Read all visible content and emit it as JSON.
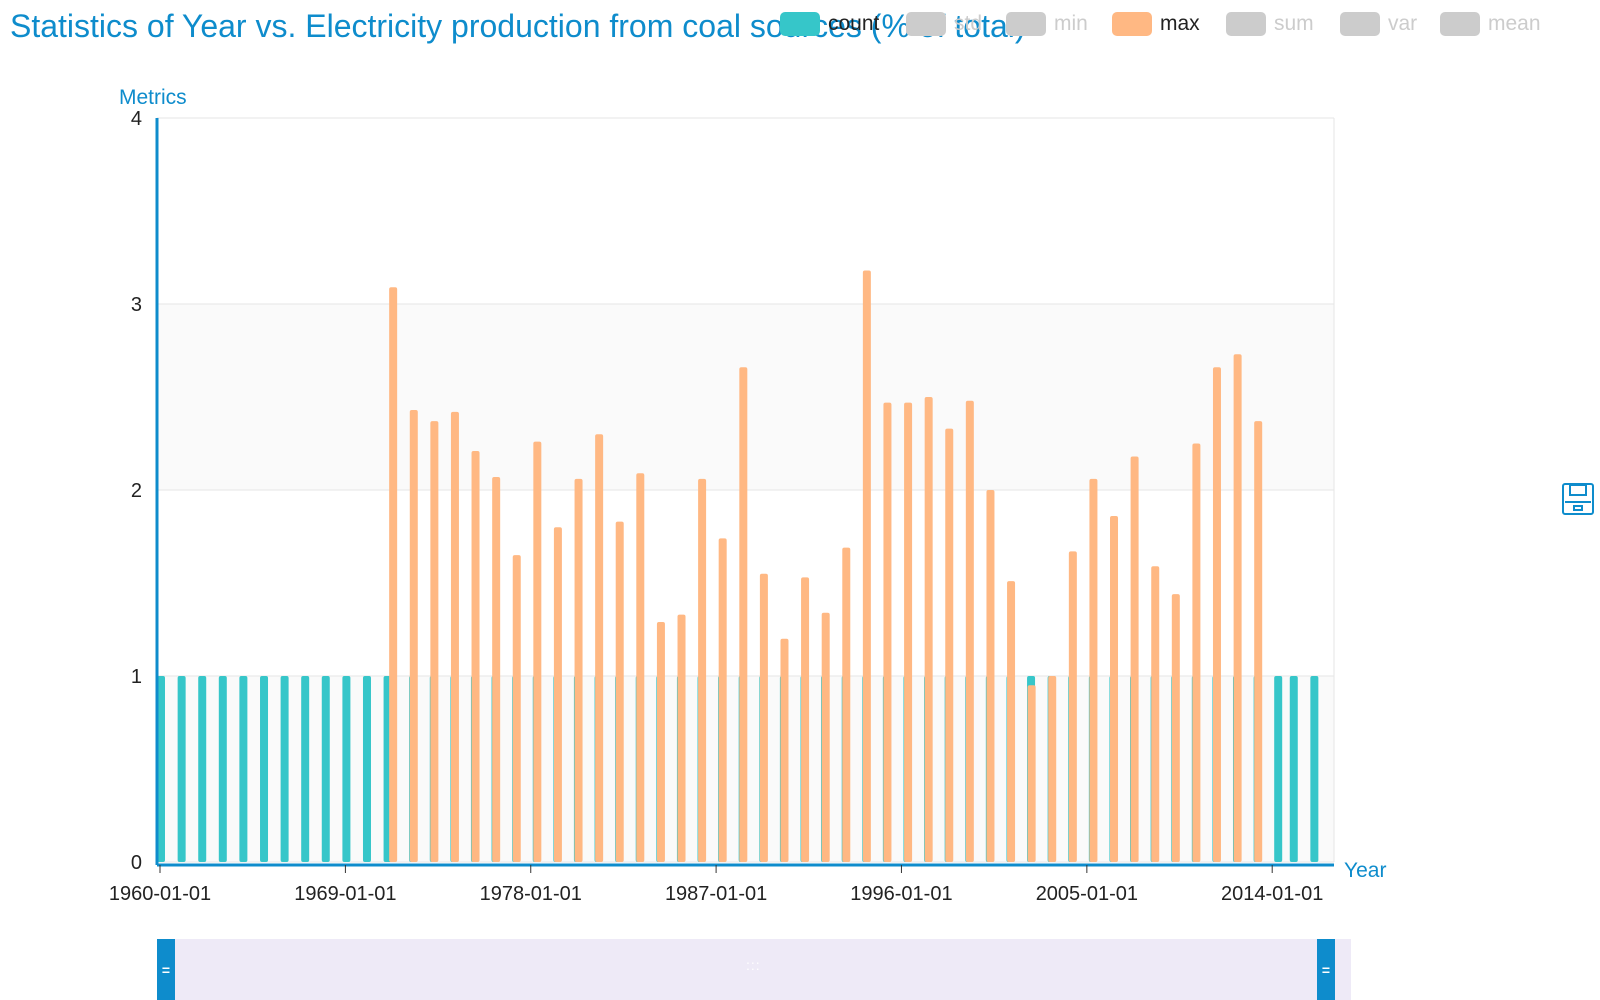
{
  "title": "Statistics of Year vs. Electricity production from coal sources (% of total)",
  "legend": [
    {
      "label": "count",
      "color": "#36c6c9",
      "active": true
    },
    {
      "label": "std",
      "color": "#cccccc",
      "active": false
    },
    {
      "label": "min",
      "color": "#cccccc",
      "active": false
    },
    {
      "label": "max",
      "color": "#ffb883",
      "active": true
    },
    {
      "label": "sum",
      "color": "#cccccc",
      "active": false
    },
    {
      "label": "var",
      "color": "#cccccc",
      "active": false
    },
    {
      "label": "mean",
      "color": "#cccccc",
      "active": false
    }
  ],
  "colors": {
    "accent": "#0e8ccc",
    "count": "#36c6c9",
    "max": "#ffb883",
    "inactive": "#cccccc"
  },
  "icons": {
    "save": "save-icon"
  },
  "chart_data": {
    "type": "bar",
    "title": "Statistics of Year vs. Electricity production from coal sources (% of total)",
    "xlabel": "Year",
    "ylabel": "Metrics",
    "ylim": [
      0,
      4
    ],
    "yticks": [
      "0",
      "1",
      "2",
      "3",
      "4"
    ],
    "xticks": [
      "1960-01-01",
      "1969-01-01",
      "1978-01-01",
      "1987-01-01",
      "1996-01-01",
      "2005-01-01",
      "2014-01-01"
    ],
    "x": [
      "1960-01-01",
      "1961-01-01",
      "1962-01-01",
      "1963-01-01",
      "1964-01-01",
      "1965-01-01",
      "1966-01-01",
      "1967-01-01",
      "1968-01-01",
      "1969-01-01",
      "1970-01-01",
      "1971-01-01",
      "1972-01-01",
      "1973-01-01",
      "1974-01-01",
      "1975-01-01",
      "1976-01-01",
      "1977-01-01",
      "1978-01-01",
      "1979-01-01",
      "1980-01-01",
      "1981-01-01",
      "1982-01-01",
      "1983-01-01",
      "1984-01-01",
      "1985-01-01",
      "1986-01-01",
      "1987-01-01",
      "1988-01-01",
      "1989-01-01",
      "1990-01-01",
      "1991-01-01",
      "1992-01-01",
      "1993-01-01",
      "1994-01-01",
      "1995-01-01",
      "1996-01-01",
      "1997-01-01",
      "1998-01-01",
      "1999-01-01",
      "2000-01-01",
      "2001-01-01",
      "2002-01-01",
      "2003-01-01",
      "2004-01-01",
      "2005-01-01",
      "2006-01-01",
      "2007-01-01",
      "2008-01-01",
      "2009-01-01",
      "2010-01-01",
      "2011-01-01",
      "2012-01-01",
      "2013-01-01",
      "2014-01-01",
      "2015-01-01",
      "2016-01-01"
    ],
    "series": [
      {
        "name": "count",
        "values": [
          1,
          1,
          1,
          1,
          1,
          1,
          1,
          1,
          1,
          1,
          1,
          1,
          1,
          1,
          1,
          1,
          1,
          1,
          1,
          1,
          1,
          1,
          1,
          1,
          1,
          1,
          1,
          1,
          1,
          1,
          1,
          1,
          1,
          1,
          1,
          1,
          1,
          1,
          1,
          1,
          1,
          1,
          1,
          1,
          1,
          1,
          1,
          1,
          1,
          1,
          1,
          1,
          1,
          1,
          1,
          1,
          1
        ]
      },
      {
        "name": "max",
        "values": [
          null,
          null,
          null,
          null,
          null,
          null,
          null,
          null,
          null,
          null,
          null,
          null,
          3.09,
          2.43,
          2.37,
          2.42,
          2.21,
          2.07,
          1.65,
          2.26,
          1.8,
          2.06,
          2.3,
          1.83,
          2.09,
          1.29,
          1.33,
          2.06,
          1.74,
          2.66,
          1.55,
          1.2,
          1.53,
          1.34,
          1.69,
          3.18,
          2.47,
          2.47,
          2.5,
          2.33,
          2.48,
          2.0,
          1.51,
          0.95,
          1.0,
          1.67,
          2.06,
          1.86,
          2.18,
          1.59,
          1.44,
          2.25,
          2.66,
          2.73,
          2.37,
          null,
          null
        ]
      }
    ],
    "grid": true,
    "legend_position": "top-right"
  }
}
